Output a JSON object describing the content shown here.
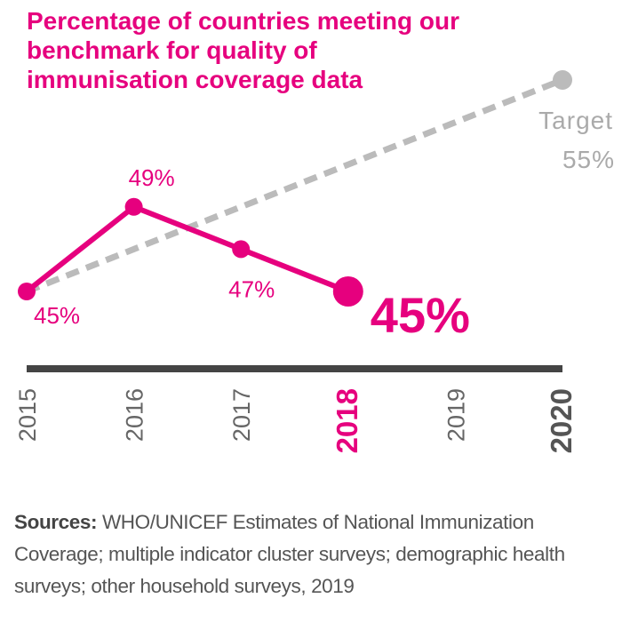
{
  "chart_data": {
    "type": "line",
    "title": [
      "Percentage of countries meeting our",
      "benchmark for quality of",
      "immunisation coverage data"
    ],
    "categories": [
      "2015",
      "2016",
      "2017",
      "2018",
      "2019",
      "2020"
    ],
    "series": [
      {
        "color": "#e6007e",
        "values": [
          45,
          49,
          47,
          45,
          null,
          null
        ],
        "value_labels": [
          "45%",
          "49%",
          "47%",
          "45%",
          null,
          null
        ]
      },
      {
        "name": "Target",
        "color": "#bbbbbb",
        "dashed": true,
        "values": [
          45,
          null,
          null,
          null,
          null,
          55
        ],
        "value_labels": [
          null,
          null,
          null,
          null,
          null,
          "55%"
        ]
      }
    ],
    "source_label": "Sources:",
    "source": "WHO/UNICEF Estimates of National Immunization Coverage; multiple indicator cluster surveys; demographic health surveys; other household surveys, 2019"
  }
}
